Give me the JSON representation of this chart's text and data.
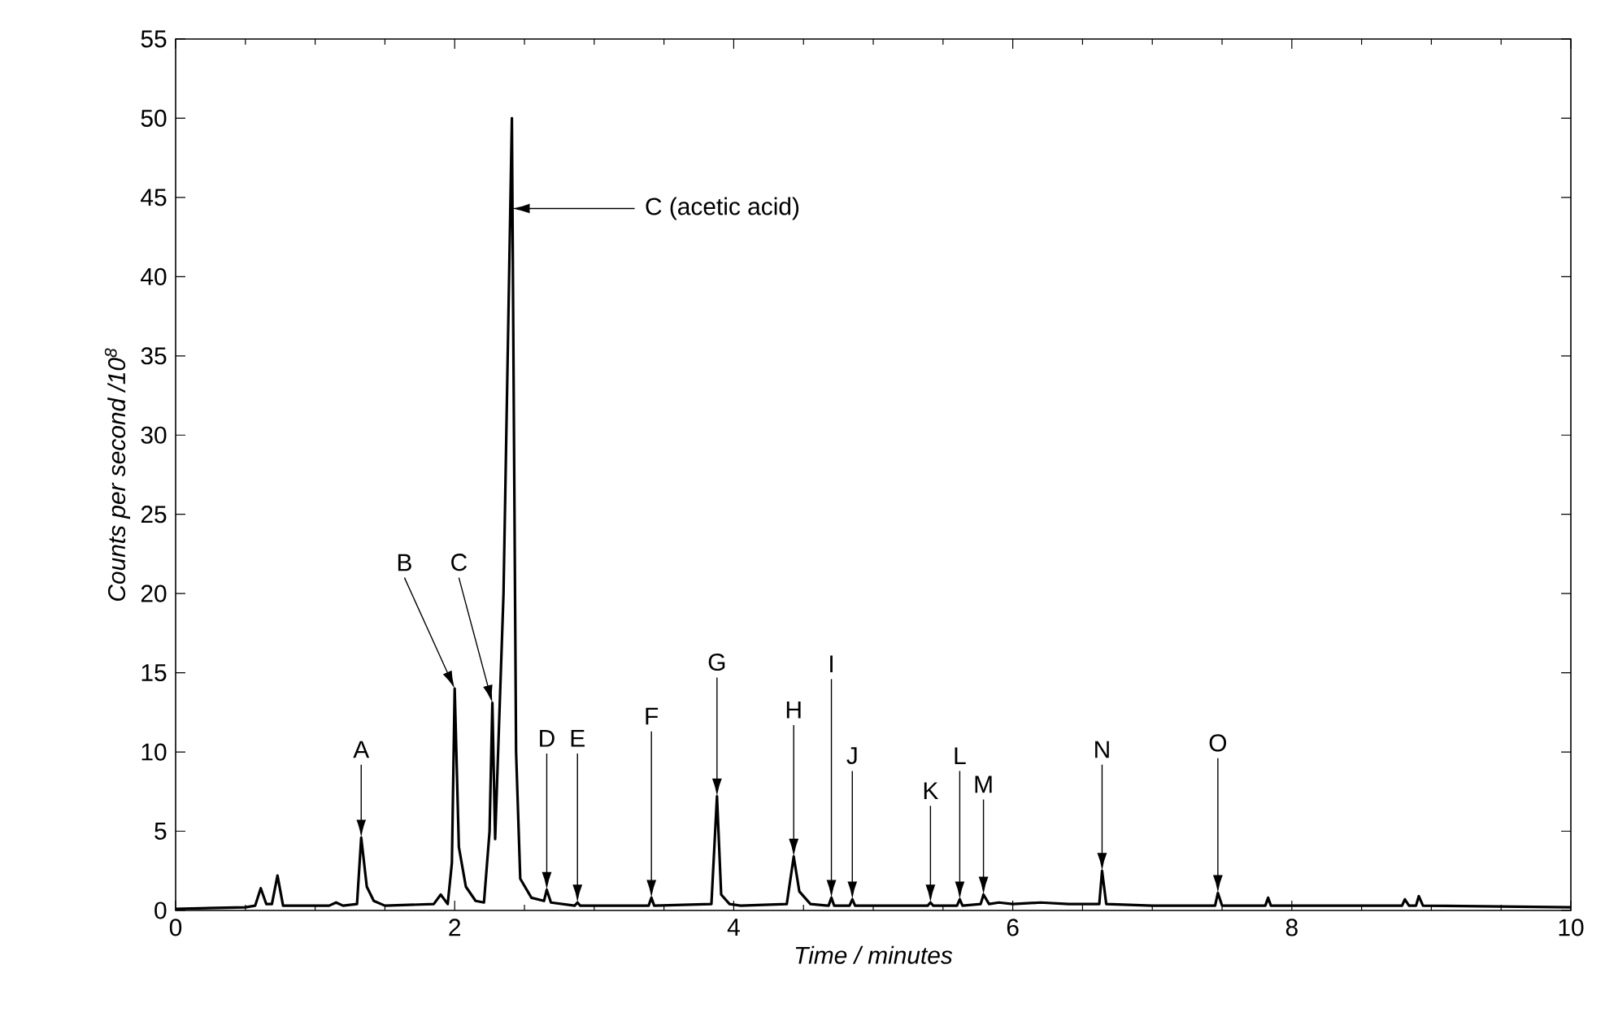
{
  "chart_data": {
    "type": "line",
    "xlabel": "Time / minutes",
    "ylabel": "Counts per second  /10$^{8}$",
    "x": [
      0,
      0.5,
      0.57,
      0.61,
      0.65,
      0.69,
      0.73,
      0.77,
      1.1,
      1.15,
      1.2,
      1.3,
      1.33,
      1.37,
      1.42,
      1.5,
      1.85,
      1.9,
      1.95,
      1.98,
      2.0,
      2.03,
      2.08,
      2.15,
      2.21,
      2.25,
      2.27,
      2.29,
      2.35,
      2.41,
      2.44,
      2.47,
      2.55,
      2.64,
      2.66,
      2.69,
      2.86,
      2.88,
      2.9,
      3.39,
      3.41,
      3.43,
      3.84,
      3.88,
      3.91,
      3.97,
      4.05,
      4.38,
      4.43,
      4.47,
      4.55,
      4.68,
      4.7,
      4.72,
      4.83,
      4.85,
      4.87,
      5.39,
      5.41,
      5.43,
      5.6,
      5.62,
      5.64,
      5.77,
      5.79,
      5.83,
      5.9,
      6.0,
      6.2,
      6.4,
      6.62,
      6.64,
      6.67,
      7.0,
      7.45,
      7.47,
      7.5,
      7.81,
      7.83,
      7.85,
      8.79,
      8.81,
      8.84,
      8.89,
      8.91,
      8.94,
      10
    ],
    "series": [
      {
        "color": "#000000",
        "values": [
          0.1,
          0.2,
          0.3,
          1.4,
          0.4,
          0.4,
          2.2,
          0.3,
          0.3,
          0.5,
          0.3,
          0.4,
          4.6,
          1.5,
          0.6,
          0.3,
          0.4,
          1.0,
          0.4,
          3,
          14.0,
          4,
          1.5,
          0.6,
          0.5,
          5,
          13.1,
          4.5,
          20,
          50.0,
          10,
          2,
          0.8,
          0.6,
          1.3,
          0.5,
          0.3,
          0.5,
          0.3,
          0.3,
          0.8,
          0.3,
          0.4,
          7.2,
          1,
          0.4,
          0.3,
          0.4,
          3.4,
          1.2,
          0.4,
          0.3,
          0.8,
          0.3,
          0.3,
          0.7,
          0.3,
          0.3,
          0.5,
          0.3,
          0.3,
          0.7,
          0.3,
          0.4,
          1.0,
          0.4,
          0.5,
          0.4,
          0.5,
          0.4,
          0.4,
          2.5,
          0.4,
          0.3,
          0.3,
          1.1,
          0.3,
          0.3,
          0.8,
          0.3,
          0.3,
          0.7,
          0.3,
          0.3,
          0.9,
          0.3,
          0.2
        ]
      }
    ],
    "xlim": [
      0,
      10
    ],
    "ylim": [
      0,
      55
    ],
    "xticks": [
      0,
      2,
      4,
      6,
      8,
      10
    ],
    "yticks": [
      0,
      5,
      10,
      15,
      20,
      25,
      30,
      35,
      40,
      45,
      50,
      55
    ],
    "annotations": [
      "A",
      "B",
      "C",
      "C (acetic acid)",
      "D",
      "E",
      "F",
      "G",
      "H",
      "I",
      "J",
      "K",
      "L",
      "M",
      "N",
      "O"
    ]
  }
}
